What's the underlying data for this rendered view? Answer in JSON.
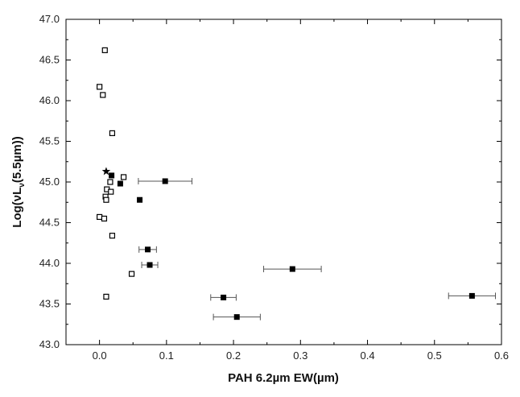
{
  "chart_data": {
    "type": "scatter",
    "title": "",
    "xlabel": "PAH 6.2µm EW(µm)",
    "ylabel_parts": {
      "pre": "Log(",
      "nu": "ν",
      "l": "L",
      "sub": "ν",
      "post": "(5.5µm))"
    },
    "xlim": [
      -0.05,
      0.6
    ],
    "ylim": [
      43.0,
      47.0
    ],
    "x_ticks": [
      0.0,
      0.1,
      0.2,
      0.3,
      0.4,
      0.5,
      0.6
    ],
    "x_tick_labels": [
      "0.0",
      "0.1",
      "0.2",
      "0.3",
      "0.4",
      "0.5",
      "0.6"
    ],
    "y_ticks": [
      43.0,
      43.5,
      44.0,
      44.5,
      45.0,
      45.5,
      46.0,
      46.5,
      47.0
    ],
    "y_tick_labels": [
      "43.0",
      "43.5",
      "44.0",
      "44.5",
      "45.0",
      "45.5",
      "46.0",
      "46.5",
      "47.0"
    ],
    "grid": false,
    "legend": "none",
    "colors": {
      "marker": "#000000",
      "errorbar": "#555555",
      "axis": "#000000"
    },
    "series": [
      {
        "marker": "filled-square",
        "points": [
          {
            "x": 0.018,
            "y": 45.08,
            "xerr": null
          },
          {
            "x": 0.031,
            "y": 44.98,
            "xerr": null
          },
          {
            "x": 0.06,
            "y": 44.78,
            "xerr": null
          },
          {
            "x": 0.098,
            "y": 45.01,
            "xerr": 0.04
          },
          {
            "x": 0.072,
            "y": 44.17,
            "xerr": 0.013
          },
          {
            "x": 0.075,
            "y": 43.98,
            "xerr": 0.012
          },
          {
            "x": 0.185,
            "y": 43.58,
            "xerr": 0.019
          },
          {
            "x": 0.205,
            "y": 43.34,
            "xerr": 0.035
          },
          {
            "x": 0.288,
            "y": 43.93,
            "xerr": 0.043
          },
          {
            "x": 0.556,
            "y": 43.6,
            "xerr": 0.035
          }
        ]
      },
      {
        "marker": "open-square",
        "points": [
          {
            "x": 0.008,
            "y": 46.62
          },
          {
            "x": 0.0,
            "y": 46.17
          },
          {
            "x": 0.005,
            "y": 46.07
          },
          {
            "x": 0.019,
            "y": 45.6
          },
          {
            "x": 0.016,
            "y": 45.0
          },
          {
            "x": 0.036,
            "y": 45.06
          },
          {
            "x": 0.011,
            "y": 44.91
          },
          {
            "x": 0.017,
            "y": 44.88
          },
          {
            "x": 0.009,
            "y": 44.82
          },
          {
            "x": 0.01,
            "y": 44.78
          },
          {
            "x": 0.0,
            "y": 44.57
          },
          {
            "x": 0.007,
            "y": 44.55
          },
          {
            "x": 0.019,
            "y": 44.34
          },
          {
            "x": 0.048,
            "y": 43.87
          },
          {
            "x": 0.01,
            "y": 43.59
          }
        ]
      },
      {
        "marker": "star",
        "points": [
          {
            "x": 0.01,
            "y": 45.13
          }
        ]
      }
    ]
  }
}
